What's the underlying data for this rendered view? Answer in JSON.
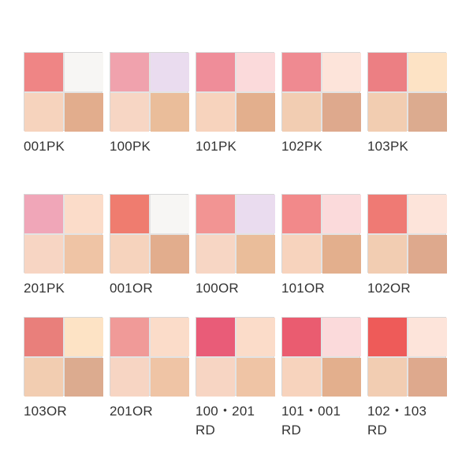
{
  "palettes": [
    {
      "label": "001PK",
      "label2": "",
      "colors": [
        "#ef8585",
        "#f7f6f4",
        "#f6d3bd",
        "#e2ad8d"
      ]
    },
    {
      "label": "100PK",
      "label2": "",
      "colors": [
        "#f0a2ad",
        "#eadcef",
        "#f7d6c4",
        "#eabd9a"
      ]
    },
    {
      "label": "101PK",
      "label2": "",
      "colors": [
        "#ef8d99",
        "#fbdadb",
        "#f7d3bd",
        "#e3af8d"
      ]
    },
    {
      "label": "102PK",
      "label2": "",
      "colors": [
        "#ef8a91",
        "#fde4da",
        "#f2cdb2",
        "#dea98d"
      ]
    },
    {
      "label": "103PK",
      "label2": "",
      "colors": [
        "#ec7f83",
        "#fde3c5",
        "#f2cdb1",
        "#dcab8f"
      ]
    },
    {
      "label": "201PK",
      "label2": "",
      "colors": [
        "#f0a6b8",
        "#fbdcc9",
        "#f7d5c3",
        "#efc4a5"
      ]
    },
    {
      "label": "001OR",
      "label2": "",
      "colors": [
        "#ef7c6f",
        "#f7f6f4",
        "#f6d3bd",
        "#e2ad8d"
      ]
    },
    {
      "label": "100OR",
      "label2": "",
      "colors": [
        "#f29493",
        "#eadcef",
        "#f7d6c4",
        "#eabd9a"
      ]
    },
    {
      "label": "101OR",
      "label2": "",
      "colors": [
        "#f2898a",
        "#fbdadb",
        "#f7d3bd",
        "#e3af8d"
      ]
    },
    {
      "label": "102OR",
      "label2": "",
      "colors": [
        "#ef7a74",
        "#fde4da",
        "#f2cdb2",
        "#dea98d"
      ]
    },
    {
      "label": "103OR",
      "label2": "",
      "colors": [
        "#e97f7b",
        "#fde3c5",
        "#f2cdb1",
        "#dcab8f"
      ]
    },
    {
      "label": "201OR",
      "label2": "",
      "colors": [
        "#f09a98",
        "#fbdcc9",
        "#f7d5c3",
        "#efc4a5"
      ]
    },
    {
      "label": "100・201",
      "label2": "RD",
      "colors": [
        "#e95c78",
        "#fbdcc9",
        "#f7d5c3",
        "#efc4a5"
      ]
    },
    {
      "label": "101・001",
      "label2": "RD",
      "colors": [
        "#ea5c70",
        "#fbdadb",
        "#f7d3bd",
        "#e3af8d"
      ]
    },
    {
      "label": "102・103",
      "label2": "RD",
      "colors": [
        "#ee5b59",
        "#fde4da",
        "#f2cdb2",
        "#dea98d"
      ]
    }
  ]
}
